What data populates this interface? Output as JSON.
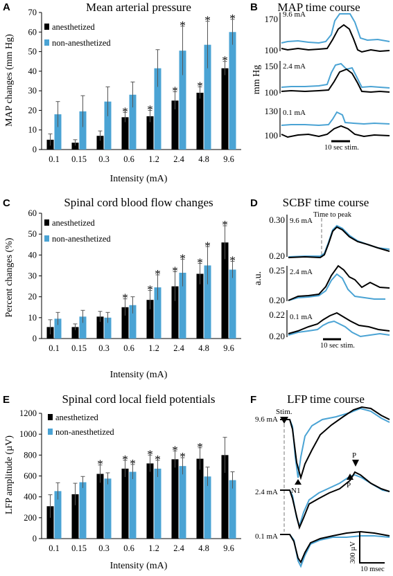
{
  "colors": {
    "anesthetized": "#000000",
    "non_anesthetized": "#4aa3d4"
  },
  "chart_data": [
    {
      "panel": "A",
      "type": "bar",
      "title": "Mean arterial pressure",
      "xlabel": "Intensity (mA)",
      "ylabel": "MAP changes (mm Hg)",
      "ylim": [
        0,
        70
      ],
      "yticks": [
        0,
        10,
        20,
        30,
        40,
        50,
        60,
        70
      ],
      "categories": [
        "0.1",
        "0.15",
        "0.3",
        "0.6",
        "1.2",
        "2.4",
        "4.8",
        "9.6"
      ],
      "series": [
        {
          "name": "anesthetized",
          "values": [
            5,
            3.5,
            7,
            16.5,
            17,
            25,
            29,
            41.5
          ],
          "errors": [
            3,
            1.5,
            2.5,
            2.5,
            3,
            4.5,
            3,
            3.5
          ],
          "sig": [
            false,
            false,
            false,
            true,
            true,
            true,
            true,
            true
          ]
        },
        {
          "name": "non-anesthetized",
          "values": [
            18,
            19.5,
            24.5,
            28,
            41.5,
            50.5,
            53.5,
            60
          ],
          "errors": [
            6.5,
            8,
            7.5,
            6.5,
            9.5,
            12.5,
            12,
            6.5
          ],
          "sig": [
            false,
            false,
            false,
            false,
            false,
            true,
            true,
            true
          ]
        }
      ]
    },
    {
      "panel": "C",
      "type": "bar",
      "title": "Spinal cord blood flow changes",
      "xlabel": "Intensity (mA)",
      "ylabel": "Percent changes (%)",
      "ylim": [
        0,
        60
      ],
      "yticks": [
        0,
        10,
        20,
        30,
        40,
        50,
        60
      ],
      "categories": [
        "0.1",
        "0.15",
        "0.3",
        "0.6",
        "1.2",
        "2.4",
        "4.8",
        "9.6"
      ],
      "series": [
        {
          "name": "anesthetized",
          "values": [
            5.5,
            5.5,
            10.5,
            15,
            18.5,
            25,
            31,
            46
          ],
          "errors": [
            3.5,
            1.5,
            2.5,
            4,
            4.5,
            7,
            5,
            8
          ],
          "sig": [
            false,
            false,
            false,
            true,
            true,
            true,
            true,
            true
          ]
        },
        {
          "name": "non-anesthetized",
          "values": [
            9.5,
            10.5,
            10,
            16,
            24.5,
            31.5,
            35,
            33
          ],
          "errors": [
            3,
            3,
            2.5,
            4,
            6,
            6.5,
            9,
            4
          ],
          "sig": [
            false,
            false,
            false,
            false,
            true,
            true,
            true,
            true
          ]
        }
      ]
    },
    {
      "panel": "E",
      "type": "bar",
      "title": "Spinal cord local field potentials",
      "xlabel": "Intensity (mA)",
      "ylabel": "LFP amplitude (µV)",
      "ylim": [
        0,
        1200
      ],
      "yticks": [
        0,
        200,
        400,
        600,
        800,
        1000,
        1200
      ],
      "categories": [
        "0.1",
        "0.15",
        "0.3",
        "0.6",
        "1.2",
        "2.4",
        "4.8",
        "9.6"
      ],
      "series": [
        {
          "name": "anesthetized",
          "values": [
            310,
            425,
            620,
            670,
            720,
            760,
            765,
            800
          ],
          "errors": [
            110,
            105,
            85,
            80,
            80,
            80,
            105,
            170
          ],
          "sig": [
            false,
            false,
            true,
            true,
            true,
            true,
            true,
            false
          ]
        },
        {
          "name": "non-anesthetized",
          "values": [
            455,
            540,
            575,
            640,
            670,
            695,
            595,
            560
          ],
          "errors": [
            80,
            55,
            55,
            70,
            80,
            80,
            90,
            80
          ],
          "sig": [
            false,
            false,
            false,
            true,
            true,
            true,
            false,
            false
          ]
        }
      ]
    }
  ],
  "panels": {
    "A": {
      "letter": "A",
      "legend": [
        "anesthetized",
        "non-anesthetized"
      ]
    },
    "B": {
      "letter": "B",
      "title": "MAP time course",
      "ylabel": "mm Hg",
      "stim_label": "10 sec stim.",
      "traces": [
        {
          "label": "9.6 mA",
          "top": "170",
          "bottom": "100"
        },
        {
          "label": "2.4 mA",
          "top": "150",
          "bottom": "100"
        },
        {
          "label": "0.1 mA",
          "top": "130",
          "bottom": "100"
        }
      ]
    },
    "C": {
      "letter": "C",
      "legend": [
        "anesthetized",
        "non-anesthetized"
      ]
    },
    "D": {
      "letter": "D",
      "title": "SCBF time course",
      "ylabel": "a.u.",
      "stim_label": "10 sec stim.",
      "peak_label": "Time to peak",
      "traces": [
        {
          "label": "9.6 mA",
          "top": "0.30",
          "bottom": "0.20"
        },
        {
          "label": "2.4 mA",
          "top": "0.25",
          "bottom": "0.20"
        },
        {
          "label": "0.1 mA",
          "top": "0.22",
          "bottom": "0.20"
        }
      ]
    },
    "E": {
      "letter": "E",
      "legend": [
        "anesthetized",
        "non-anesthetized"
      ]
    },
    "F": {
      "letter": "F",
      "title": "LFP time course",
      "stim": "Stim.",
      "n1": "N1",
      "p": "P",
      "traces": [
        "9.6 mA",
        "2.4 mA",
        "0.1 mA"
      ],
      "scale_v": "300 µV",
      "scale_t": "10 msec"
    }
  },
  "star": "*"
}
